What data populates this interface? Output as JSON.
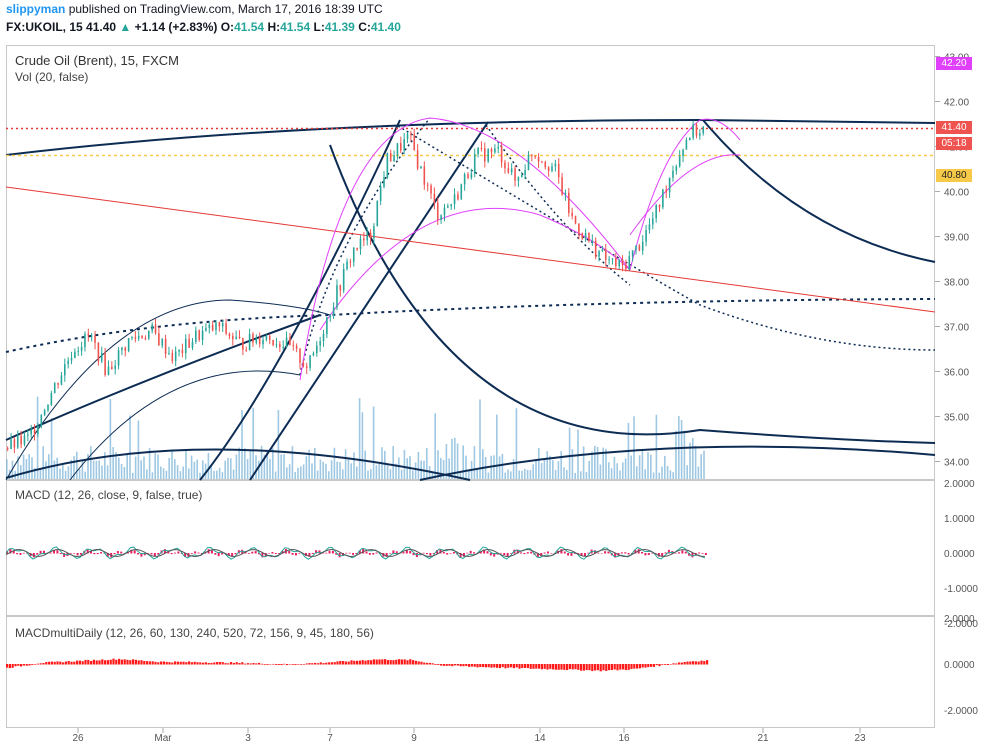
{
  "header": {
    "user": "slippyman",
    "published_text": "published on TradingView.com, March 17, 2016 18:39 UTC",
    "symbol": "FX:UKOIL, 15",
    "last": "41.40",
    "change": "+1.14 (+2.83%)",
    "o_label": "O:",
    "o": "41.54",
    "h_label": "H:",
    "h": "41.54",
    "l_label": "L:",
    "l": "41.39",
    "c_label": "C:",
    "c": "41.40"
  },
  "main_pane": {
    "title": "Crude Oil (Brent), 15, FXCM",
    "volume_label": "Vol (20, false)"
  },
  "macd_pane": {
    "title": "MACD (12, 26, close, 9, false, true)"
  },
  "macd_multi_pane": {
    "title": "MACDmultiDaily (12, 26, 60, 130, 240, 520, 72, 156, 9, 45, 180, 56)"
  },
  "tags": {
    "alert": "42.20",
    "last": "41.40",
    "countdown": "05:18",
    "level": "40.80"
  },
  "colors": {
    "up": "#26a69a",
    "down": "#ef5350",
    "navy": "#0d2c54",
    "magenta": "#e040fb",
    "red": "#e53935",
    "gold": "#f7c948",
    "vol": "#7db6d9"
  },
  "chart_data": [
    {
      "type": "candlestick",
      "title": "Crude Oil (Brent), 15, FXCM",
      "ylim": [
        33.6,
        43.1
      ],
      "y_ticks": [
        "34.00",
        "35.00",
        "36.00",
        "37.00",
        "38.00",
        "39.00",
        "40.00",
        "41.00",
        "42.00",
        "43.00"
      ],
      "x_ticks": [
        "26",
        "Mar",
        "3",
        "7",
        "9",
        "14",
        "16",
        "21",
        "23"
      ],
      "price_path": [
        [
          0,
          34.3
        ],
        [
          4,
          34.5
        ],
        [
          8,
          35.5
        ],
        [
          12,
          36.5
        ],
        [
          15,
          36.8
        ],
        [
          18,
          36.0
        ],
        [
          22,
          36.7
        ],
        [
          26,
          36.9
        ],
        [
          30,
          36.3
        ],
        [
          34,
          36.8
        ],
        [
          38,
          37.0
        ],
        [
          42,
          36.6
        ],
        [
          46,
          36.8
        ],
        [
          50,
          36.6
        ],
        [
          54,
          36.1
        ],
        [
          58,
          37.4
        ],
        [
          62,
          38.7
        ],
        [
          65,
          39.0
        ],
        [
          68,
          40.7
        ],
        [
          72,
          41.2
        ],
        [
          74,
          40.5
        ],
        [
          77,
          39.5
        ],
        [
          80,
          39.8
        ],
        [
          84,
          40.8
        ],
        [
          88,
          40.9
        ],
        [
          91,
          40.2
        ],
        [
          94,
          40.9
        ],
        [
          98,
          40.5
        ],
        [
          101,
          39.4
        ],
        [
          104,
          38.9
        ],
        [
          107,
          38.5
        ],
        [
          110,
          38.3
        ],
        [
          113,
          38.8
        ],
        [
          116,
          39.5
        ],
        [
          119,
          40.5
        ],
        [
          122,
          41.3
        ],
        [
          125,
          41.4
        ]
      ],
      "reference_lines": [
        {
          "label": "alert",
          "value": 42.2
        },
        {
          "label": "last",
          "value": 41.4
        },
        {
          "label": "level",
          "value": 40.8
        }
      ]
    },
    {
      "type": "bar",
      "title": "Vol (20, false)"
    },
    {
      "type": "line",
      "title": "MACD (12, 26, close, 9, false, true)",
      "ylim": [
        -2.1,
        2.1
      ],
      "y_ticks": [
        "2.0000",
        "1.0000",
        "0.0000",
        "-1.0000",
        "-2.0000"
      ]
    },
    {
      "type": "area",
      "title": "MACDmultiDaily (12, 26, 60, 130, 240, 520, 72, 156, 9, 45, 180, 56)",
      "ylim": [
        -2.1,
        2.1
      ],
      "y_ticks": [
        "2.0000",
        "0.0000",
        "-2.0000"
      ],
      "values": [
        [
          0,
          -0.15
        ],
        [
          6,
          0.05
        ],
        [
          14,
          0.15
        ],
        [
          20,
          0.22
        ],
        [
          27,
          0.1
        ],
        [
          35,
          0.08
        ],
        [
          42,
          0.05
        ],
        [
          50,
          -0.02
        ],
        [
          58,
          0.08
        ],
        [
          66,
          0.2
        ],
        [
          72,
          0.18
        ],
        [
          78,
          -0.05
        ],
        [
          86,
          -0.12
        ],
        [
          94,
          -0.18
        ],
        [
          100,
          -0.22
        ],
        [
          106,
          -0.27
        ],
        [
          112,
          -0.2
        ],
        [
          116,
          -0.06
        ],
        [
          122,
          0.12
        ],
        [
          125,
          0.15
        ]
      ]
    }
  ]
}
